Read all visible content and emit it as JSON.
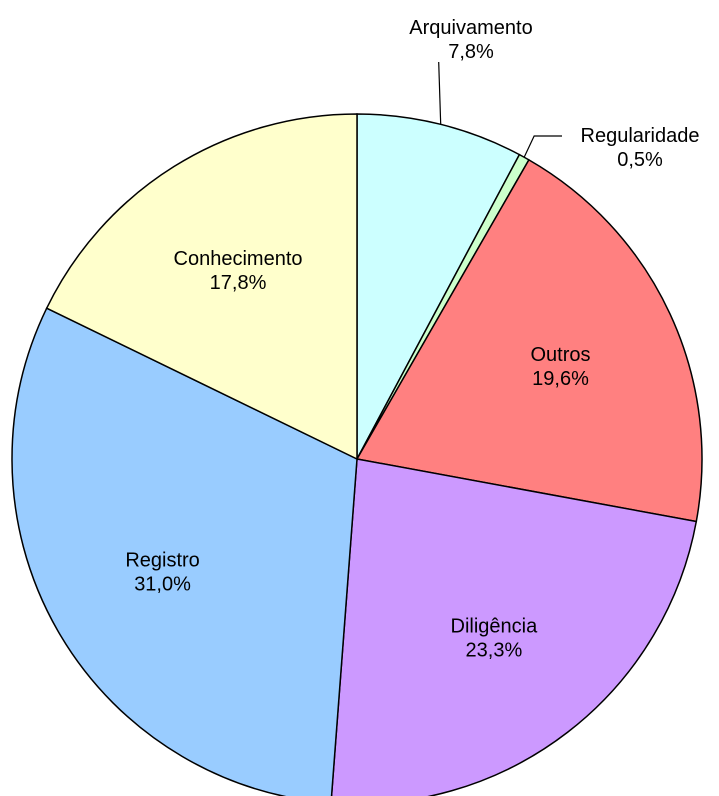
{
  "chart_data": {
    "type": "pie",
    "categories": [
      "Arquivamento",
      "Regularidade",
      "Outros",
      "Diligência",
      "Registro",
      "Conhecimento"
    ],
    "values": [
      7.8,
      0.5,
      19.6,
      23.3,
      31.0,
      17.8
    ],
    "value_labels": [
      "7,8%",
      "0,5%",
      "19,6%",
      "23,3%",
      "31,0%",
      "17,8%"
    ],
    "colors": [
      "#ccffff",
      "#ccffcc",
      "#ff8080",
      "#cc99ff",
      "#99ccff",
      "#ffffcc"
    ]
  }
}
